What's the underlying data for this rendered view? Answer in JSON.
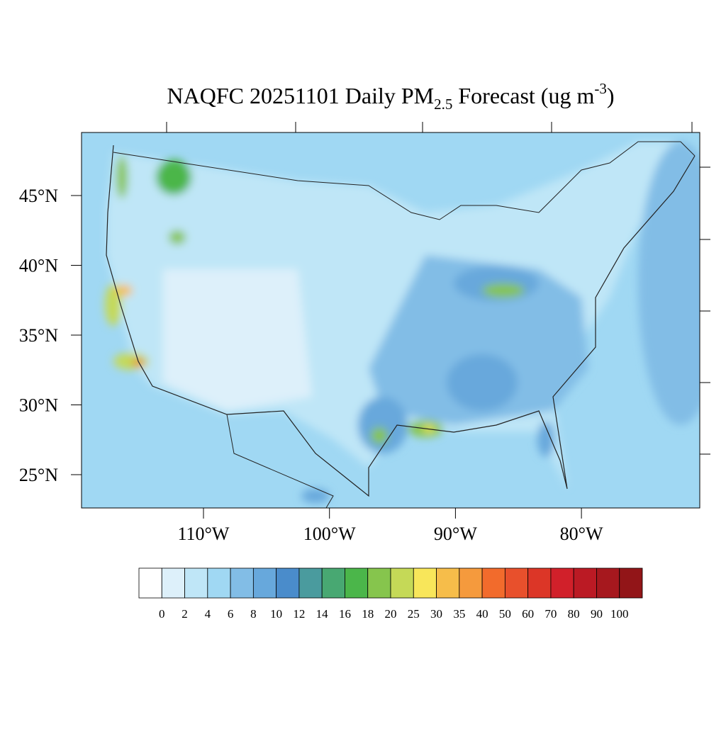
{
  "title": {
    "main": "NAQFC 20251101 Daily PM",
    "subscript": "2.5",
    "middle": " Forecast (ug m",
    "superscript": "-3",
    "end": ")"
  },
  "map": {
    "lat_ticks": [
      {
        "value": 45,
        "label": "45°N"
      },
      {
        "value": 40,
        "label": "40°N"
      },
      {
        "value": 35,
        "label": "35°N"
      },
      {
        "value": 30,
        "label": "30°N"
      },
      {
        "value": 25,
        "label": "25°N"
      }
    ],
    "lon_ticks": [
      {
        "value": -110,
        "label": "110°W"
      },
      {
        "value": -100,
        "label": "100°W"
      },
      {
        "value": -90,
        "label": "90°W"
      },
      {
        "value": -80,
        "label": "80°W"
      }
    ]
  },
  "colorbar": {
    "levels": [
      0,
      2,
      4,
      6,
      8,
      10,
      12,
      14,
      16,
      18,
      20,
      25,
      30,
      35,
      40,
      50,
      60,
      70,
      80,
      90,
      100
    ],
    "colors": [
      "#ffffff",
      "#ddf0fa",
      "#bfe6f7",
      "#a0d8f3",
      "#82bde6",
      "#67a8dc",
      "#4a8ccb",
      "#4a9b9e",
      "#48a872",
      "#4bb64a",
      "#86c54d",
      "#c5d957",
      "#f8e65a",
      "#f6bd4a",
      "#f59a3d",
      "#f26b2c",
      "#e8502c",
      "#dc3627",
      "#d1202a",
      "#bb1a24",
      "#a6181e",
      "#921518"
    ]
  }
}
